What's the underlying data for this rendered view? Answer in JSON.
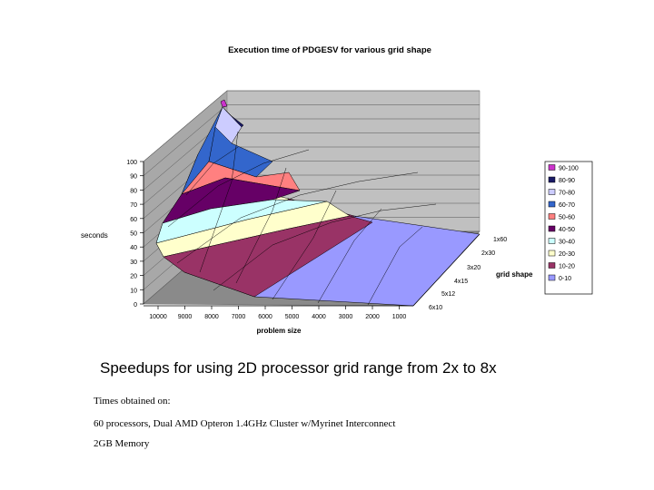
{
  "chart_data": {
    "type": "surface",
    "title": "Execution time of PDGESV for various grid shape",
    "xlabel": "problem size",
    "ylabel": "seconds",
    "zlabel": "grid shape",
    "x_categories": [
      "10000",
      "9000",
      "8000",
      "7000",
      "6000",
      "5000",
      "4000",
      "3000",
      "2000",
      "1000"
    ],
    "grid_shapes": [
      "1x60",
      "2x30",
      "3x20",
      "4x15",
      "5x12",
      "6x10"
    ],
    "y_ticks": [
      "0",
      "10",
      "20",
      "30",
      "40",
      "50",
      "60",
      "70",
      "80",
      "90",
      "100"
    ],
    "ylim": [
      0,
      100
    ],
    "legend": [
      {
        "label": "90-100",
        "color": "#cc33cc"
      },
      {
        "label": "80-90",
        "color": "#1a1a66"
      },
      {
        "label": "70-80",
        "color": "#ccccff"
      },
      {
        "label": "60-70",
        "color": "#3366cc"
      },
      {
        "label": "50-60",
        "color": "#ff8080"
      },
      {
        "label": "40-50",
        "color": "#660066"
      },
      {
        "label": "30-40",
        "color": "#ccffff"
      },
      {
        "label": "20-30",
        "color": "#ffffcc"
      },
      {
        "label": "10-20",
        "color": "#993366"
      },
      {
        "label": "0-10",
        "color": "#9999ff"
      }
    ]
  },
  "caption": "Speedups for using 2D processor grid range from 2x to 8x",
  "notes": [
    "Times obtained on:",
    "60 processors, Dual AMD Opteron 1.4GHz Cluster w/Myrinet Interconnect",
    "2GB Memory"
  ]
}
